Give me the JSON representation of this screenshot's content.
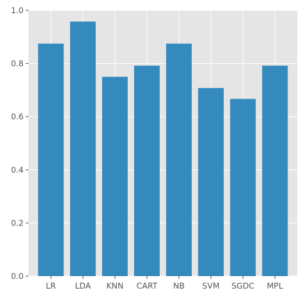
{
  "chart_data": {
    "type": "bar",
    "title": "",
    "xlabel": "",
    "ylabel": "",
    "categories": [
      "LR",
      "LDA",
      "KNN",
      "CART",
      "NB",
      "SVM",
      "SGDC",
      "MPL"
    ],
    "values": [
      0.875,
      0.958,
      0.75,
      0.792,
      0.875,
      0.708,
      0.667,
      0.792
    ],
    "ylim": [
      0,
      1.0
    ],
    "yticks": [
      0.0,
      0.2,
      0.4,
      0.6,
      0.8,
      1.0
    ],
    "ytick_labels": [
      "0.0",
      "0.2",
      "0.4",
      "0.6",
      "0.8",
      "1.0"
    ],
    "grid": true,
    "legend": "none",
    "colors": {
      "bar": "#348abd",
      "plot_background": "#e5e5e5",
      "grid": "#ffffff",
      "tick_text": "#555555"
    }
  }
}
